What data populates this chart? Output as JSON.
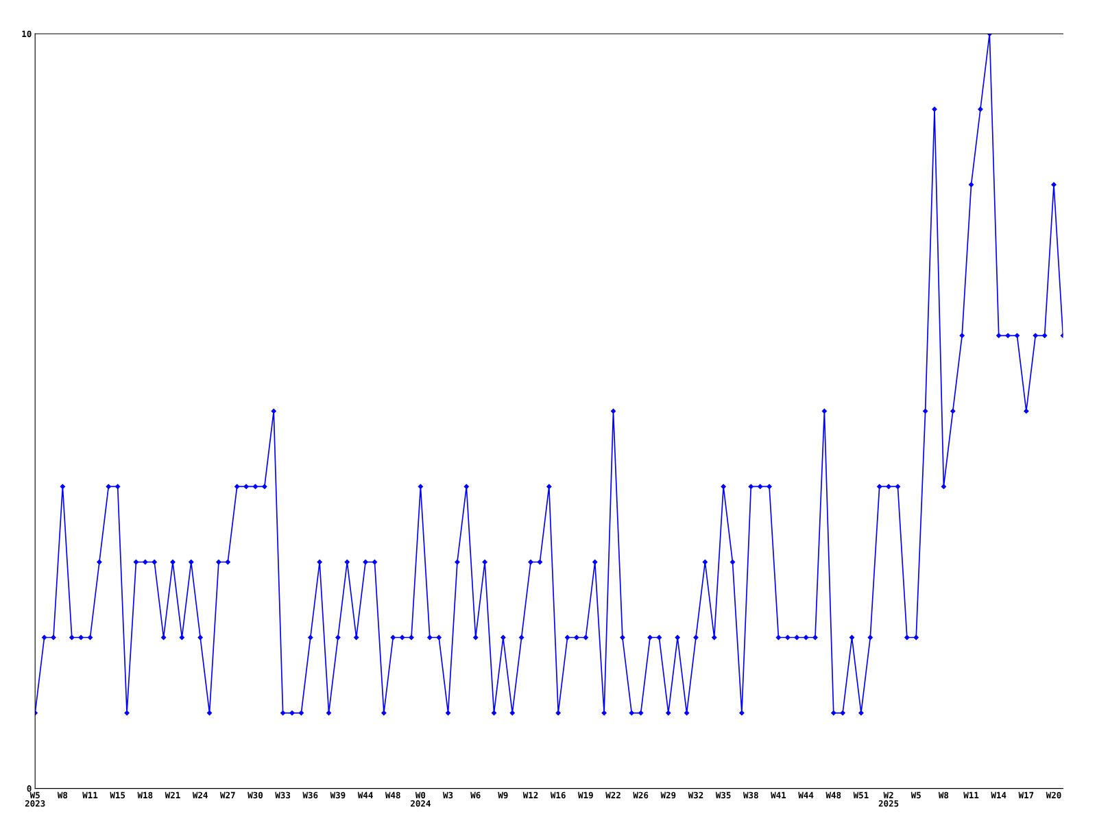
{
  "chart_data": {
    "type": "line",
    "categories": [
      "W5\n2023",
      null,
      null,
      "W8",
      null,
      null,
      "W11",
      null,
      null,
      "W15",
      null,
      null,
      "W18",
      null,
      null,
      "W21",
      null,
      null,
      "W24",
      null,
      null,
      "W27",
      null,
      null,
      "W30",
      null,
      null,
      "W33",
      null,
      null,
      "W36",
      null,
      null,
      "W39",
      null,
      null,
      "W44",
      null,
      null,
      "W48",
      null,
      null,
      "W0\n2024",
      null,
      null,
      "W3",
      null,
      null,
      "W6",
      null,
      null,
      "W9",
      null,
      null,
      "W12",
      null,
      null,
      "W16",
      null,
      null,
      "W19",
      null,
      null,
      "W22",
      null,
      null,
      "W26",
      null,
      null,
      "W29",
      null,
      null,
      "W32",
      null,
      null,
      "W35",
      null,
      null,
      "W38",
      null,
      null,
      "W41",
      null,
      null,
      "W44",
      null,
      null,
      "W48",
      null,
      null,
      "W51",
      null,
      null,
      "W2\n2025",
      null,
      null,
      "W5",
      null,
      null,
      "W8",
      null,
      null,
      "W11",
      null,
      null,
      "W14",
      null,
      null,
      "W17",
      null,
      null,
      "W20",
      null
    ],
    "series": [
      {
        "color": "#0000ff",
        "values": [
          1,
          2,
          2,
          4,
          2,
          2,
          2,
          3,
          4,
          4,
          1,
          3,
          3,
          3,
          2,
          3,
          2,
          3,
          2,
          1,
          3,
          3,
          4,
          4,
          4,
          4,
          5,
          1,
          1,
          1,
          2,
          3,
          1,
          2,
          3,
          2,
          3,
          3,
          1,
          2,
          2,
          2,
          4,
          2,
          2,
          1,
          3,
          4,
          2,
          3,
          1,
          2,
          1,
          2,
          3,
          3,
          4,
          1,
          2,
          2,
          2,
          3,
          1,
          5,
          2,
          1,
          1,
          2,
          2,
          1,
          2,
          1,
          2,
          3,
          2,
          4,
          3,
          1,
          4,
          4,
          4,
          2,
          2,
          2,
          2,
          2,
          5,
          1,
          1,
          2,
          1,
          2,
          4,
          4,
          4,
          2,
          2,
          5,
          9,
          4,
          5,
          6,
          8,
          9,
          10,
          6,
          6,
          6,
          5,
          6,
          6,
          8,
          6
        ]
      }
    ],
    "ylim": [
      0,
      10
    ],
    "yticks": [
      0,
      10
    ],
    "marker": "diamond",
    "line_style": "solid"
  }
}
